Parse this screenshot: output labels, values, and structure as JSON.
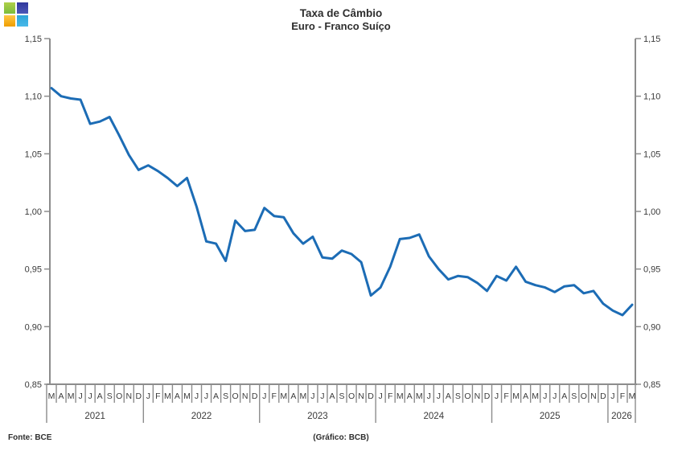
{
  "header": {
    "title": "Taxa de Câmbio",
    "subtitle": "Euro - Franco Suíço"
  },
  "footer": {
    "source": "Fonte: BCE",
    "credit": "(Gráfico: BCB)"
  },
  "logo": {
    "name": "bcb-sgs-logo",
    "square_colors": [
      "#8dc63f",
      "#3d46a8",
      "#f5a800",
      "#33aadf"
    ]
  },
  "chart_data": {
    "type": "line",
    "title": "Taxa de Câmbio",
    "subtitle": "Euro - Franco Suíço",
    "frequency": "monthly",
    "x_start": "2021-03",
    "x_end": "2026-03",
    "ylim": [
      0.85,
      1.15
    ],
    "yticks": [
      1.15,
      1.1,
      1.05,
      1.0,
      0.95,
      0.9,
      0.85
    ],
    "ytick_labels": [
      "1,15",
      "1,10",
      "1,05",
      "1,00",
      "0,95",
      "0,90",
      "0,85"
    ],
    "grid": false,
    "legend": "none",
    "dual_y_axis": true,
    "colors": {
      "line": "#1c6cb5",
      "axis": "#8c8c8c",
      "text": "#3a3a3a"
    },
    "month_letters": [
      "M",
      "A",
      "M",
      "J",
      "J",
      "A",
      "S",
      "O",
      "N",
      "D",
      "J",
      "F",
      "M",
      "A",
      "M",
      "J",
      "J",
      "A",
      "S",
      "O",
      "N",
      "D",
      "J",
      "F",
      "M",
      "A",
      "M",
      "J",
      "J",
      "A",
      "S",
      "O",
      "N",
      "D",
      "J",
      "F",
      "M",
      "A",
      "M",
      "J",
      "J",
      "A",
      "S",
      "O",
      "N",
      "D",
      "J",
      "F",
      "M",
      "A",
      "M",
      "J",
      "J",
      "A",
      "S",
      "O",
      "N",
      "D",
      "J",
      "F",
      "M"
    ],
    "years": [
      {
        "label": "2021",
        "months": 10
      },
      {
        "label": "2022",
        "months": 12
      },
      {
        "label": "2023",
        "months": 12
      },
      {
        "label": "2024",
        "months": 12
      },
      {
        "label": "2025",
        "months": 12
      },
      {
        "label": "2026",
        "months": 3
      }
    ],
    "series": [
      {
        "name": "EUR/CHF",
        "values": [
          1.107,
          1.1,
          1.098,
          1.097,
          1.076,
          1.078,
          1.082,
          1.066,
          1.049,
          1.036,
          1.04,
          1.035,
          1.029,
          1.022,
          1.029,
          1.004,
          0.974,
          0.972,
          0.957,
          0.992,
          0.983,
          0.984,
          1.003,
          0.996,
          0.995,
          0.981,
          0.972,
          0.978,
          0.96,
          0.959,
          0.966,
          0.963,
          0.956,
          0.927,
          0.934,
          0.952,
          0.976,
          0.977,
          0.98,
          0.961,
          0.95,
          0.941,
          0.944,
          0.943,
          0.938,
          0.931,
          0.944,
          0.94,
          0.952,
          0.939,
          0.936,
          0.934,
          0.93,
          0.935,
          0.936,
          0.929,
          0.931,
          0.92,
          0.914,
          0.91,
          0.919
        ]
      }
    ]
  }
}
